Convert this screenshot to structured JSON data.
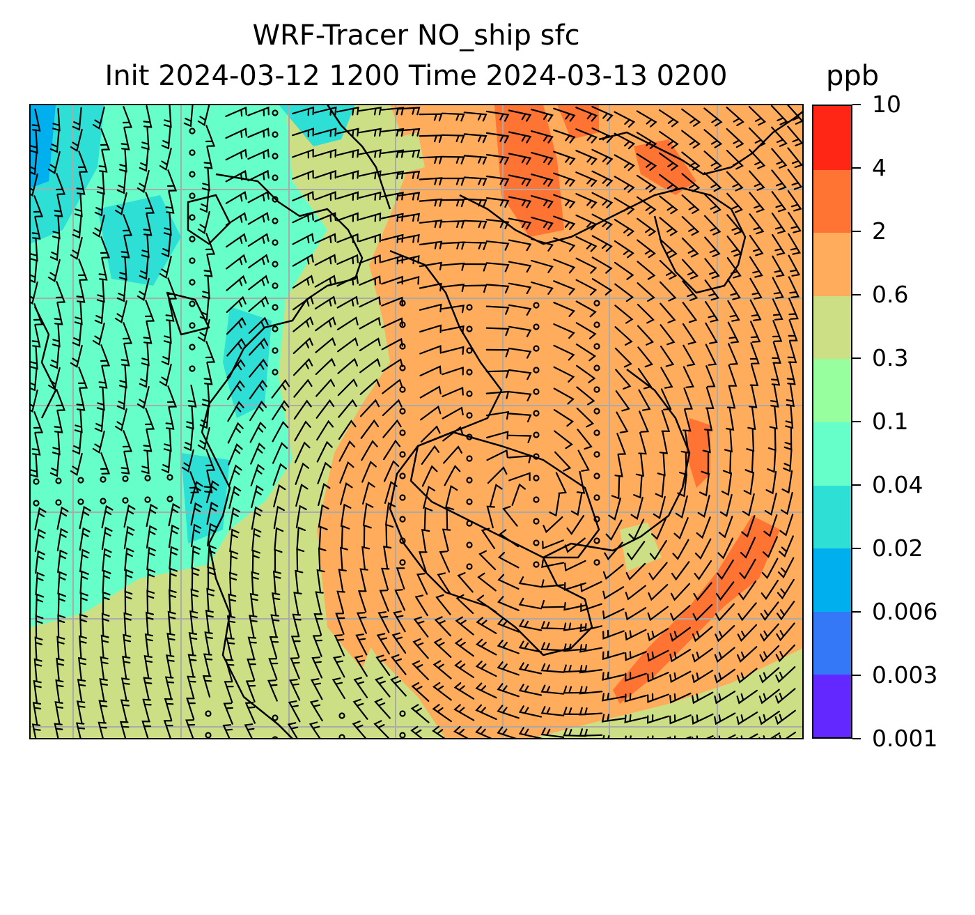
{
  "title": {
    "line1": "WRF-Tracer NO_ship sfc",
    "line2": "Init 2024-03-12 1200 Time 2024-03-13 0200"
  },
  "colorbar": {
    "units": "ppb",
    "ticks": [
      "0.001",
      "0.003",
      "0.006",
      "0.02",
      "0.04",
      "0.1",
      "0.3",
      "0.6",
      "2",
      "4",
      "10"
    ],
    "colors": [
      "#6228ff",
      "#3477f7",
      "#00b0ee",
      "#2edfd6",
      "#66ffca",
      "#97ff9d",
      "#cddf85",
      "#ffac5d",
      "#ff7333",
      "#ff2616"
    ]
  },
  "map": {
    "gridlines": true,
    "barb_color": "#000000",
    "coastline_color": "#000000",
    "grid_color": "#aaaaaa"
  }
}
